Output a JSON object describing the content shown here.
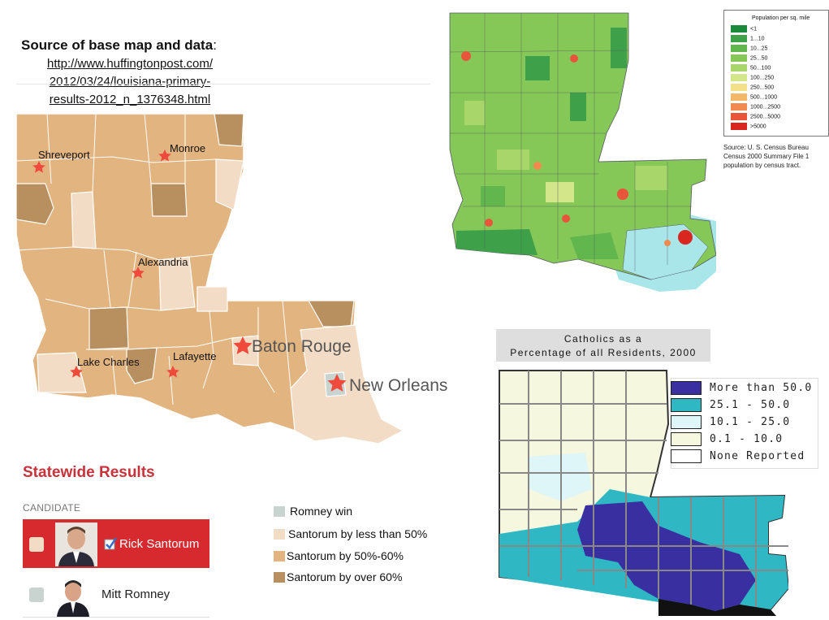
{
  "source": {
    "title": "Source of base map and data",
    "colon": ":",
    "link_lines": [
      "http://www.huffingtonpost.com/",
      "2012/03/24/louisiana-primary-",
      "results-2012_n_1376348.html"
    ]
  },
  "primary_map": {
    "cities": [
      "Shreveport",
      "Monroe",
      "Alexandria",
      "Lake Charles",
      "Lafayette",
      "Baton Rouge",
      "New Orleans"
    ],
    "colors": {
      "romney": "#c9d3cf",
      "santorum_lt50": "#f3dcc5",
      "santorum_50_60": "#e2b480",
      "santorum_over60": "#b88f5e",
      "star": "#f04a3c"
    }
  },
  "statewide": {
    "heading": "Statewide Results",
    "candidate_header": "CANDIDATE",
    "candidates": [
      {
        "name": "Rick Santorum",
        "winner": true,
        "swatch": "#f3dcc5"
      },
      {
        "name": "Mitt Romney",
        "winner": false,
        "swatch": "#c9d3cf"
      }
    ]
  },
  "results_legend": [
    {
      "label": "Romney win",
      "color": "#c9d3cf"
    },
    {
      "label": "Santorum by less than 50%",
      "color": "#f3dcc5"
    },
    {
      "label": "Santorum by 50%-60%",
      "color": "#e2b480"
    },
    {
      "label": "Santorum by over 60%",
      "color": "#b88f5e"
    }
  ],
  "population_map": {
    "legend_title": "Population per sq. mile",
    "legend": [
      {
        "label": "<1",
        "color": "#1a8a3a"
      },
      {
        "label": "1...10",
        "color": "#3ea14a"
      },
      {
        "label": "10...25",
        "color": "#62b64e"
      },
      {
        "label": "25...50",
        "color": "#86c858"
      },
      {
        "label": "50...100",
        "color": "#a9d66a"
      },
      {
        "label": "100...250",
        "color": "#d4e68a"
      },
      {
        "label": "250...500",
        "color": "#f5e08a"
      },
      {
        "label": "500...1000",
        "color": "#f5b86a"
      },
      {
        "label": "1000...2500",
        "color": "#f28a50"
      },
      {
        "label": "2500...5000",
        "color": "#e8553a"
      },
      {
        "label": ">5000",
        "color": "#d9261e"
      }
    ],
    "source_lines": [
      "Source: U. S. Census Bureau",
      "Census 2000 Summary File 1",
      "population by census tract."
    ],
    "water_color": "#a8e6ea"
  },
  "catholic_map": {
    "title_lines": [
      "Catholics as a",
      "Percentage of all Residents, 2000"
    ],
    "legend": [
      {
        "label": "More than 50.0",
        "color": "#3a2fa0"
      },
      {
        "label": "25.1 - 50.0",
        "color": "#2fb8c4"
      },
      {
        "label": "10.1 - 25.0",
        "color": "#dff6f8"
      },
      {
        "label": "0.1 - 10.0",
        "color": "#f5f7df"
      },
      {
        "label": "None Reported",
        "color": "#ffffff"
      }
    ]
  }
}
